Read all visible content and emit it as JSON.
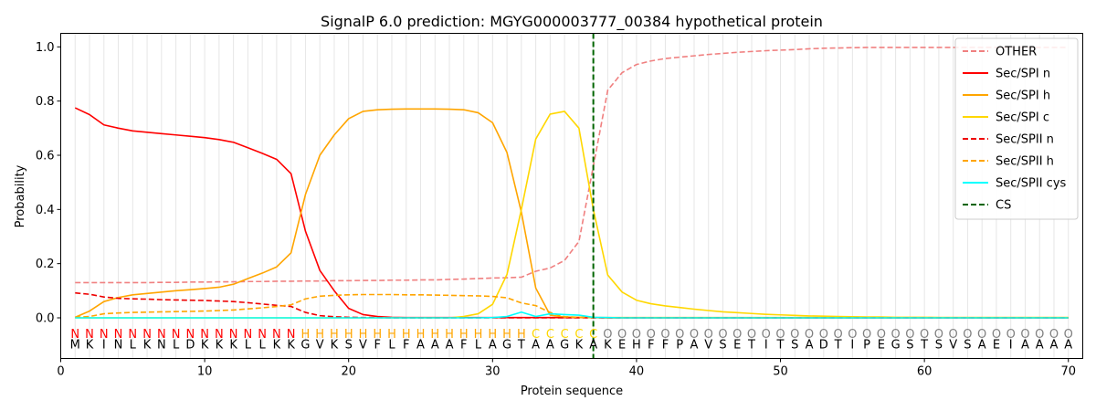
{
  "chart_data": {
    "type": "line",
    "title": "SignalP 6.0 prediction: MGYG000003777_00384 hypothetical protein",
    "xlabel": "Protein sequence",
    "ylabel": "Probability",
    "xlim": [
      0,
      71
    ],
    "ylim": [
      -0.15,
      1.05
    ],
    "xticks": [
      0,
      10,
      20,
      30,
      40,
      50,
      60,
      70
    ],
    "yticks": [
      0.0,
      0.2,
      0.4,
      0.6,
      0.8,
      1.0
    ],
    "ytick_labels": [
      "0.0",
      "0.2",
      "0.4",
      "0.6",
      "0.8",
      "1.0"
    ],
    "grid": "vertical lines at each residue position",
    "legend_position": "top-right",
    "cleavage_site": 37,
    "sequence": [
      "M",
      "K",
      "I",
      "N",
      "L",
      "K",
      "N",
      "L",
      "D",
      "K",
      "K",
      "K",
      "L",
      "L",
      "K",
      "K",
      "G",
      "V",
      "K",
      "S",
      "V",
      "F",
      "L",
      "F",
      "A",
      "A",
      "A",
      "F",
      "L",
      "A",
      "G",
      "T",
      "A",
      "A",
      "G",
      "K",
      "A",
      "K",
      "E",
      "H",
      "F",
      "F",
      "P",
      "A",
      "V",
      "S",
      "E",
      "T",
      "I",
      "T",
      "S",
      "A",
      "D",
      "T",
      "I",
      "P",
      "E",
      "G",
      "S",
      "T",
      "S",
      "V",
      "S",
      "A",
      "E",
      "I",
      "A",
      "A",
      "A",
      "A"
    ],
    "region_labels": [
      "N",
      "N",
      "N",
      "N",
      "N",
      "N",
      "N",
      "N",
      "N",
      "N",
      "N",
      "N",
      "N",
      "N",
      "N",
      "N",
      "H",
      "H",
      "H",
      "H",
      "H",
      "H",
      "H",
      "H",
      "H",
      "H",
      "H",
      "H",
      "H",
      "H",
      "H",
      "H",
      "C",
      "C",
      "C",
      "C",
      "C",
      "O",
      "O",
      "O",
      "O",
      "O",
      "O",
      "O",
      "O",
      "O",
      "O",
      "O",
      "O",
      "O",
      "O",
      "O",
      "O",
      "O",
      "O",
      "O",
      "O",
      "O",
      "O",
      "O",
      "O",
      "O",
      "O",
      "O",
      "O",
      "O",
      "O",
      "O",
      "O",
      "O"
    ],
    "region_colors": {
      "N": "#ff0000",
      "H": "#ffa500",
      "C": "#ffd700",
      "O": "#808080"
    },
    "series": [
      {
        "name": "OTHER",
        "color": "#f08080",
        "dash": "dashed",
        "values": [
          0.13,
          0.13,
          0.13,
          0.13,
          0.13,
          0.13,
          0.131,
          0.131,
          0.132,
          0.132,
          0.133,
          0.133,
          0.134,
          0.134,
          0.135,
          0.135,
          0.136,
          0.136,
          0.137,
          0.137,
          0.138,
          0.138,
          0.139,
          0.139,
          0.14,
          0.14,
          0.142,
          0.143,
          0.145,
          0.147,
          0.148,
          0.15,
          0.172,
          0.184,
          0.212,
          0.282,
          0.56,
          0.84,
          0.905,
          0.935,
          0.948,
          0.957,
          0.962,
          0.967,
          0.972,
          0.976,
          0.98,
          0.983,
          0.986,
          0.988,
          0.99,
          0.993,
          0.995,
          0.996,
          0.997,
          0.998,
          0.998,
          0.998,
          0.998,
          0.998,
          0.998,
          0.998,
          0.998,
          0.998,
          0.998,
          0.998,
          0.998,
          0.998,
          0.998,
          0.998
        ]
      },
      {
        "name": "Sec/SPI n",
        "color": "#ff0000",
        "dash": "solid",
        "values": [
          0.775,
          0.75,
          0.712,
          0.7,
          0.69,
          0.685,
          0.68,
          0.675,
          0.67,
          0.665,
          0.658,
          0.648,
          0.628,
          0.607,
          0.585,
          0.532,
          0.32,
          0.175,
          0.1,
          0.035,
          0.012,
          0.005,
          0.002,
          0.001,
          0.001,
          0.001,
          0.001,
          0.001,
          0.001,
          0.001,
          0.001,
          0.001,
          0.001,
          0.001,
          0.001,
          0.001,
          0.001,
          0,
          0,
          0,
          0,
          0,
          0,
          0,
          0,
          0,
          0,
          0,
          0,
          0,
          0,
          0,
          0,
          0,
          0,
          0,
          0,
          0,
          0,
          0,
          0,
          0,
          0,
          0,
          0,
          0,
          0,
          0,
          0,
          0
        ]
      },
      {
        "name": "Sec/SPI h",
        "color": "#ffa500",
        "dash": "solid",
        "values": [
          0.002,
          0.025,
          0.06,
          0.075,
          0.085,
          0.09,
          0.095,
          0.1,
          0.104,
          0.108,
          0.113,
          0.124,
          0.145,
          0.165,
          0.188,
          0.24,
          0.455,
          0.6,
          0.675,
          0.735,
          0.762,
          0.768,
          0.77,
          0.771,
          0.771,
          0.771,
          0.77,
          0.768,
          0.757,
          0.72,
          0.61,
          0.39,
          0.11,
          0.01,
          0.003,
          0.002,
          0.001,
          0.001,
          0.001,
          0.001,
          0.001,
          0.001,
          0.001,
          0.001,
          0.001,
          0.001,
          0.001,
          0.001,
          0.001,
          0.001,
          0.001,
          0.001,
          0.001,
          0.001,
          0.001,
          0.001,
          0.001,
          0.001,
          0.001,
          0.001,
          0.001,
          0.001,
          0.001,
          0.001,
          0.001,
          0.001,
          0.001,
          0.001,
          0.001,
          0.001
        ]
      },
      {
        "name": "Sec/SPI c",
        "color": "#ffd700",
        "dash": "solid",
        "values": [
          0,
          0,
          0,
          0,
          0,
          0,
          0,
          0,
          0,
          0,
          0,
          0,
          0,
          0,
          0,
          0,
          0,
          0,
          0,
          0,
          0,
          0,
          0,
          0,
          0,
          0,
          0,
          0.005,
          0.015,
          0.05,
          0.16,
          0.4,
          0.66,
          0.752,
          0.762,
          0.7,
          0.4,
          0.158,
          0.095,
          0.065,
          0.052,
          0.044,
          0.038,
          0.032,
          0.027,
          0.022,
          0.019,
          0.016,
          0.013,
          0.011,
          0.009,
          0.007,
          0.006,
          0.005,
          0.004,
          0.003,
          0.003,
          0.002,
          0.002,
          0.002,
          0.001,
          0.001,
          0.001,
          0.001,
          0.001,
          0.001,
          0.001,
          0.001,
          0.001,
          0.001
        ]
      },
      {
        "name": "Sec/SPII n",
        "color": "#ee0000",
        "dash": "dashed",
        "values": [
          0.092,
          0.087,
          0.077,
          0.072,
          0.07,
          0.069,
          0.067,
          0.066,
          0.065,
          0.064,
          0.062,
          0.06,
          0.056,
          0.051,
          0.046,
          0.042,
          0.02,
          0.008,
          0.004,
          0.002,
          0.001,
          0.001,
          0,
          0,
          0,
          0,
          0,
          0,
          0,
          0,
          0,
          0,
          0,
          0,
          0,
          0,
          0,
          0,
          0,
          0,
          0,
          0,
          0,
          0,
          0,
          0,
          0,
          0,
          0,
          0,
          0,
          0,
          0,
          0,
          0,
          0,
          0,
          0,
          0,
          0,
          0,
          0,
          0,
          0,
          0,
          0,
          0,
          0,
          0,
          0
        ]
      },
      {
        "name": "Sec/SPII h",
        "color": "#ffa500",
        "dash": "dashed",
        "values": [
          0.002,
          0.005,
          0.015,
          0.018,
          0.02,
          0.021,
          0.022,
          0.023,
          0.024,
          0.025,
          0.027,
          0.029,
          0.033,
          0.037,
          0.042,
          0.048,
          0.07,
          0.08,
          0.083,
          0.085,
          0.086,
          0.086,
          0.086,
          0.085,
          0.085,
          0.084,
          0.083,
          0.082,
          0.081,
          0.079,
          0.074,
          0.055,
          0.045,
          0.02,
          0.004,
          0.002,
          0.001,
          0,
          0,
          0,
          0,
          0,
          0,
          0,
          0,
          0,
          0,
          0,
          0,
          0,
          0,
          0,
          0,
          0,
          0,
          0,
          0,
          0,
          0,
          0,
          0,
          0,
          0,
          0,
          0,
          0,
          0,
          0,
          0,
          0
        ]
      },
      {
        "name": "Sec/SPII cys",
        "color": "#00ffff",
        "dash": "solid",
        "values": [
          0,
          0,
          0,
          0,
          0,
          0,
          0,
          0,
          0,
          0,
          0,
          0,
          0,
          0,
          0,
          0,
          0,
          0,
          0,
          0,
          0,
          0,
          0,
          0,
          0,
          0,
          0,
          0,
          0,
          0.001,
          0.005,
          0.021,
          0.005,
          0.015,
          0.012,
          0.01,
          0.002,
          0.001,
          0,
          0,
          0,
          0,
          0,
          0,
          0,
          0,
          0,
          0,
          0,
          0,
          0,
          0,
          0,
          0,
          0,
          0,
          0,
          0,
          0,
          0,
          0,
          0,
          0,
          0,
          0,
          0,
          0,
          0,
          0,
          0
        ]
      },
      {
        "name": "CS",
        "color": "#006400",
        "dash": "dashed",
        "vertical_at": 37
      }
    ]
  }
}
